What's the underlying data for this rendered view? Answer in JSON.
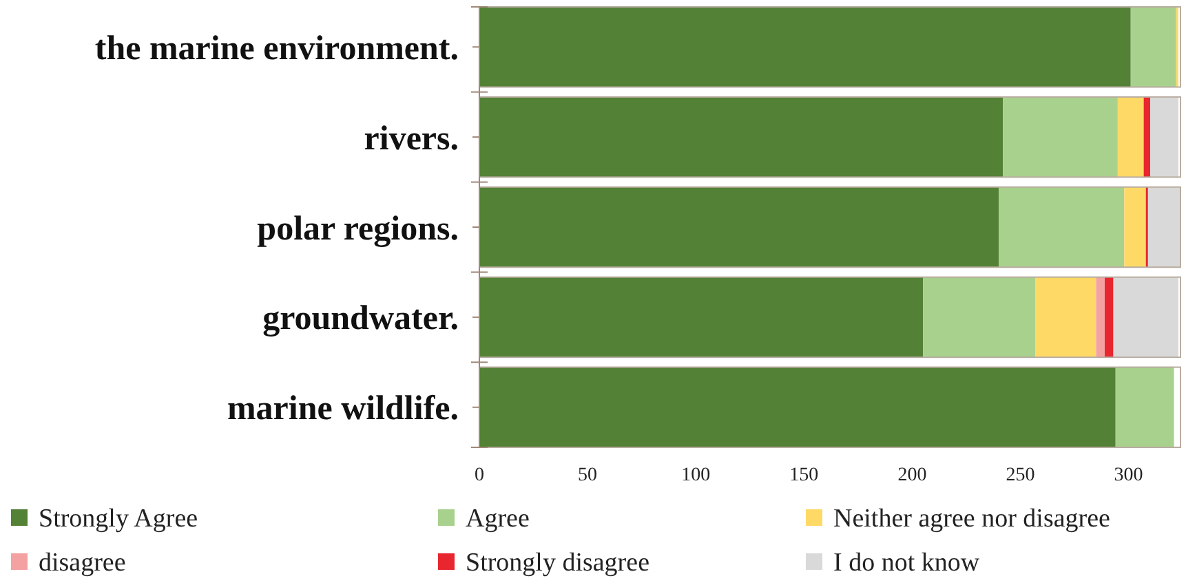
{
  "chart_data": {
    "type": "bar",
    "orientation": "horizontal",
    "stacked": true,
    "categories": [
      "the marine environment.",
      "rivers.",
      "polar regions.",
      "groundwater.",
      "marine wildlife."
    ],
    "series": [
      {
        "name": "Strongly Agree",
        "color": "#538135",
        "values": [
          301,
          242,
          240,
          205,
          294
        ]
      },
      {
        "name": "Agree",
        "color": "#a9d18e",
        "values": [
          21,
          53,
          58,
          52,
          27
        ]
      },
      {
        "name": "Neither agree nor disagree",
        "color": "#ffd966",
        "values": [
          1,
          12,
          10,
          28,
          0
        ]
      },
      {
        "name": "disagree",
        "color": "#f4a1a1",
        "values": [
          0,
          0,
          0,
          4,
          0
        ]
      },
      {
        "name": "Strongly disagree",
        "color": "#e8262f",
        "values": [
          0,
          3,
          1,
          4,
          0
        ]
      },
      {
        "name": "I do not know",
        "color": "#d9d9d9",
        "values": [
          0,
          13,
          15,
          30,
          0
        ]
      }
    ],
    "xlim": [
      0,
      324
    ],
    "xticks": [
      0,
      50,
      100,
      150,
      200,
      250,
      300
    ],
    "legend": "bottom",
    "grid": false
  }
}
